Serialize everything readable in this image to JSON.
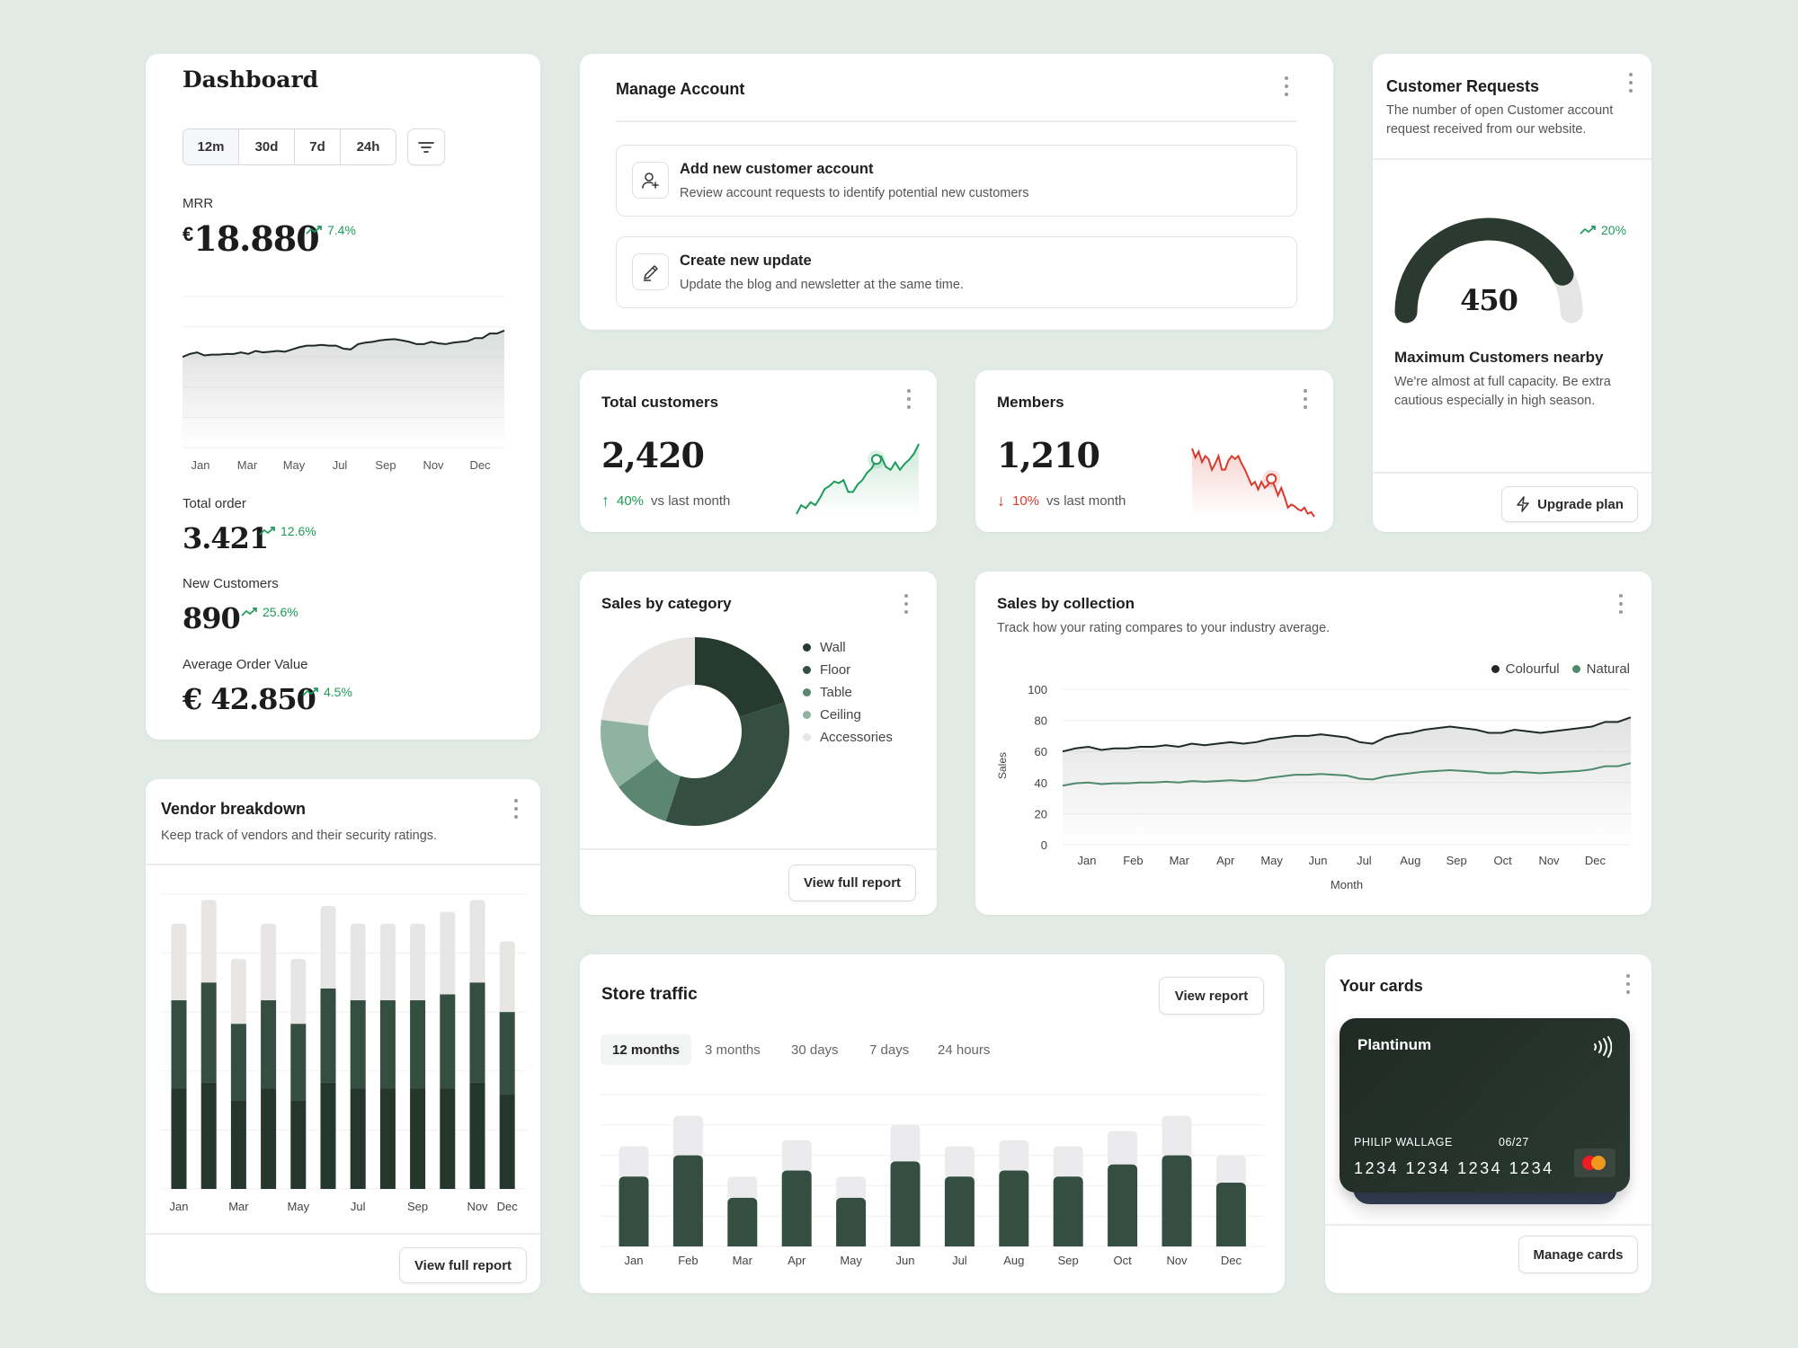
{
  "dashboard": {
    "title": "Dashboard",
    "ranges": [
      "12m",
      "30d",
      "7d",
      "24h"
    ],
    "active_range": "12m",
    "filter_icon": "filter-lines-icon",
    "mrr": {
      "label": "MRR",
      "currency": "€",
      "value": "18.880",
      "change": "7.4%"
    },
    "total_order": {
      "label": "Total order",
      "value": "3.421",
      "change": "12.6%"
    },
    "new_customers": {
      "label": "New Customers",
      "value": "890",
      "change": "25.6%"
    },
    "aov": {
      "label": "Average Order Value",
      "value": "€ 42.850",
      "change": "4.5%"
    },
    "trend_color": "#1e9b5a"
  },
  "manage_account": {
    "title": "Manage Account",
    "items": [
      {
        "title": "Add new customer account",
        "description": "Review account requests to identify potential new customers",
        "icon": "user-plus-icon"
      },
      {
        "title": "Create new update",
        "description": "Update the blog and newsletter at the same time.",
        "icon": "pen-icon"
      }
    ]
  },
  "customer_requests": {
    "title": "Customer Requests",
    "description": "The number of open Customer account request received from our website.",
    "gauge_value": "450",
    "gauge_fill": 0.85,
    "change": "20%",
    "subtitle": "Maximum Customers nearby",
    "subtitle_desc": "We're almost at full capacity. Be extra cautious especially in high season.",
    "button": "Upgrade plan",
    "button_icon": "lightning-icon"
  },
  "total_customers": {
    "title": "Total customers",
    "value": "2,420",
    "change": "40%",
    "change_suffix": "vs last month",
    "direction": "up",
    "color": "#1e9b5a"
  },
  "members": {
    "title": "Members",
    "value": "1,210",
    "change": "10%",
    "change_suffix": "vs last month",
    "direction": "down",
    "color": "#d93a2b"
  },
  "sales_by_category": {
    "title": "Sales by category",
    "button": "View full report"
  },
  "sales_by_collection": {
    "title": "Sales by collection",
    "description": "Track how your rating compares to your industry average."
  },
  "store_traffic": {
    "title": "Store traffic",
    "button": "View report",
    "tabs": [
      "12 months",
      "3 months",
      "30 days",
      "7 days",
      "24 hours"
    ],
    "active_tab": "12 months"
  },
  "vendor_breakdown": {
    "title": "Vendor breakdown",
    "description": "Keep track of vendors and their security ratings.",
    "button": "View full report"
  },
  "your_cards": {
    "title": "Your cards",
    "card": {
      "tier": "Plantinum",
      "holder": "PHILIP WALLAGE",
      "expiry": "06/27",
      "number": "1234 1234 1234 1234",
      "brand_icon": "mastercard-icon",
      "contactless_icon": "contactless-icon"
    },
    "button": "Manage cards"
  },
  "chart_data": [
    {
      "id": "mrr",
      "type": "area",
      "xticks": [
        "Jan",
        "Mar",
        "May",
        "Jul",
        "Sep",
        "Nov",
        "Dec"
      ],
      "values": [
        60,
        62,
        63,
        61,
        61.5,
        61.5,
        62,
        62,
        63,
        62,
        64,
        63,
        63.5,
        64,
        63.5,
        65,
        66.5,
        67.5,
        67.5,
        68,
        67.5,
        67.5,
        65.5,
        65,
        68.5,
        69.5,
        70,
        71,
        71.5,
        71.8,
        71,
        70,
        68.5,
        68.5,
        70,
        69,
        68.5,
        69.5,
        70,
        70.5,
        72.5,
        72.5,
        75.5,
        75.5,
        77.5
      ],
      "ylim": [
        0,
        100
      ],
      "grid": true,
      "color": "#1f2a24"
    },
    {
      "id": "total_customers_spark",
      "type": "line",
      "values": [
        10,
        22,
        18,
        26,
        22,
        32,
        44,
        48,
        54,
        52,
        56,
        40,
        40,
        50,
        56,
        66,
        72,
        84,
        88,
        74,
        70,
        80,
        70,
        78,
        84,
        92,
        105
      ],
      "highlight_index": 17,
      "color": "#1e9b5a"
    },
    {
      "id": "members_spark",
      "type": "line",
      "values": [
        100,
        88,
        96,
        82,
        90,
        86,
        72,
        80,
        90,
        72,
        72,
        84,
        90,
        86,
        90,
        80,
        72,
        62,
        52,
        56,
        46,
        56,
        48,
        52,
        60,
        50,
        38,
        48,
        36,
        22,
        26,
        24,
        20,
        18,
        22,
        14,
        16,
        10
      ],
      "highlight_index": 24,
      "color": "#d93a2b"
    },
    {
      "id": "sales_by_category",
      "type": "pie",
      "categories": [
        "Wall",
        "Floor",
        "Table",
        "Ceiling",
        "Accessories"
      ],
      "values": [
        20,
        35,
        10,
        12,
        23
      ],
      "colors": [
        "#273a30",
        "#354e42",
        "#5b8772",
        "#8fb3a1",
        "#e7e6e5"
      ]
    },
    {
      "id": "sales_by_collection",
      "type": "line",
      "xlabel": "Month",
      "ylabel": "Sales",
      "xticks": [
        "Jan",
        "Feb",
        "Mar",
        "Apr",
        "May",
        "Jun",
        "Jul",
        "Aug",
        "Sep",
        "Oct",
        "Nov",
        "Dec"
      ],
      "yticks": [
        0,
        20,
        40,
        60,
        80,
        100
      ],
      "ylim": [
        0,
        100
      ],
      "grid": true,
      "legend_position": "top-right",
      "series": [
        {
          "name": "Colourful",
          "color": "#1f2a24",
          "values": [
            60,
            62,
            63,
            61,
            62,
            62,
            63,
            63,
            64,
            63,
            65,
            64,
            65,
            66,
            65,
            66,
            68,
            69,
            70,
            70,
            71,
            70,
            69,
            66,
            65,
            69,
            71,
            72,
            74,
            75,
            76,
            75,
            74,
            72,
            72,
            74,
            73,
            72,
            73,
            74,
            75,
            76,
            79,
            79,
            82
          ]
        },
        {
          "name": "Natural",
          "color": "#4e8a6e",
          "values": [
            38,
            39.5,
            40,
            39,
            39.5,
            39.5,
            40,
            40,
            40.5,
            40,
            41,
            40.5,
            41,
            41.5,
            41,
            41.5,
            43,
            44,
            45,
            45,
            45.5,
            45,
            44.5,
            42.5,
            42,
            44,
            45,
            46,
            47,
            47.5,
            48,
            47.5,
            47,
            46,
            46,
            47,
            46.5,
            46,
            46.5,
            47,
            47.5,
            48.5,
            50.5,
            50.5,
            52.5
          ]
        }
      ]
    },
    {
      "id": "store_traffic",
      "type": "bar",
      "categories": [
        "Jan",
        "Feb",
        "Mar",
        "Apr",
        "May",
        "Jun",
        "Jul",
        "Aug",
        "Sep",
        "Oct",
        "Nov",
        "Dec"
      ],
      "ylim": [
        0,
        5
      ],
      "grid": true,
      "series": [
        {
          "color": "#354e42",
          "values": [
            2.3,
            3.0,
            1.6,
            2.5,
            1.6,
            2.8,
            2.3,
            2.5,
            2.3,
            2.7,
            3.0,
            2.1
          ]
        },
        {
          "color": "#ebebee",
          "values": [
            1.0,
            1.3,
            0.7,
            1.0,
            0.7,
            1.2,
            1.0,
            1.0,
            1.0,
            1.1,
            1.3,
            0.9
          ]
        }
      ]
    },
    {
      "id": "vendor_breakdown",
      "type": "bar",
      "categories": [
        "Jan",
        "Feb",
        "Mar",
        "Apr",
        "May",
        "Jun",
        "Jul",
        "Aug",
        "Sep",
        "Oct",
        "Nov",
        "Dec"
      ],
      "xticks": [
        "Jan",
        "Mar",
        "May",
        "Jul",
        "Sep",
        "Nov",
        "Dec"
      ],
      "ylim": [
        0,
        5
      ],
      "grid": true,
      "stacked": true,
      "series": [
        {
          "color": "#25362d",
          "values": [
            1.7,
            1.8,
            1.5,
            1.7,
            1.5,
            1.8,
            1.7,
            1.7,
            1.7,
            1.7,
            1.8,
            1.6
          ]
        },
        {
          "color": "#354e42",
          "values": [
            1.5,
            1.7,
            1.3,
            1.5,
            1.3,
            1.6,
            1.5,
            1.5,
            1.5,
            1.6,
            1.7,
            1.4
          ]
        },
        {
          "color": "#e7e6e5",
          "values": [
            1.3,
            1.4,
            1.1,
            1.3,
            1.1,
            1.4,
            1.3,
            1.3,
            1.3,
            1.4,
            1.4,
            1.2
          ]
        }
      ]
    }
  ]
}
